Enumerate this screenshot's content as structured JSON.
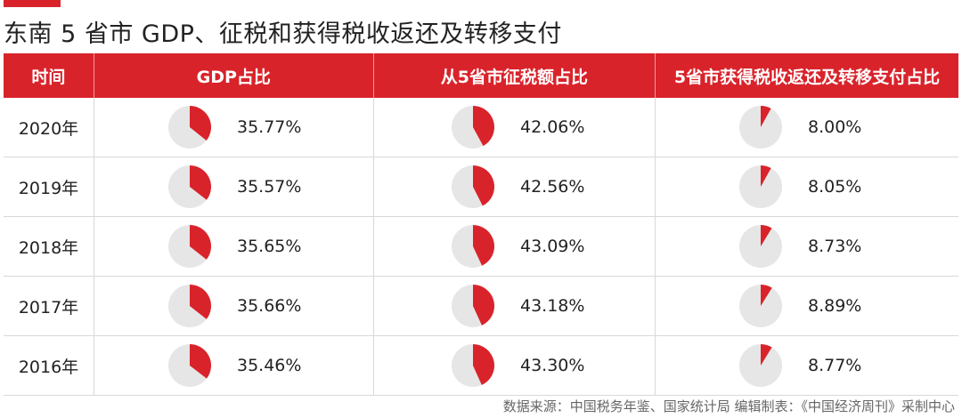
{
  "title": "东南 5 省市 GDP、征税和获得税收返还及转移支付",
  "source": "数据来源：中国税务年鉴、国家统计局   编辑制表：《中国经济周刊》采制中心",
  "colors": {
    "accent": "#d9232b",
    "pie_bg": "#e6e6e6",
    "pie_fill": "#d9232b"
  },
  "chart_data": {
    "type": "table",
    "columns": [
      "时间",
      "GDP占比",
      "从5省市征税额占比",
      "5省市获得税收返还及转移支付占比"
    ],
    "rows": [
      {
        "year": "2020年",
        "values": [
          35.77,
          42.06,
          8.0
        ],
        "labels": [
          "35.77%",
          "42.06%",
          "8.00%"
        ]
      },
      {
        "year": "2019年",
        "values": [
          35.57,
          42.56,
          8.05
        ],
        "labels": [
          "35.57%",
          "42.56%",
          "8.05%"
        ]
      },
      {
        "year": "2018年",
        "values": [
          35.65,
          43.09,
          8.73
        ],
        "labels": [
          "35.65%",
          "43.09%",
          "8.73%"
        ]
      },
      {
        "year": "2017年",
        "values": [
          35.66,
          43.18,
          8.89
        ],
        "labels": [
          "35.66%",
          "43.18%",
          "8.89%"
        ]
      },
      {
        "year": "2016年",
        "values": [
          35.46,
          43.3,
          8.77
        ],
        "labels": [
          "35.46%",
          "43.30%",
          "8.77%"
        ]
      }
    ]
  }
}
